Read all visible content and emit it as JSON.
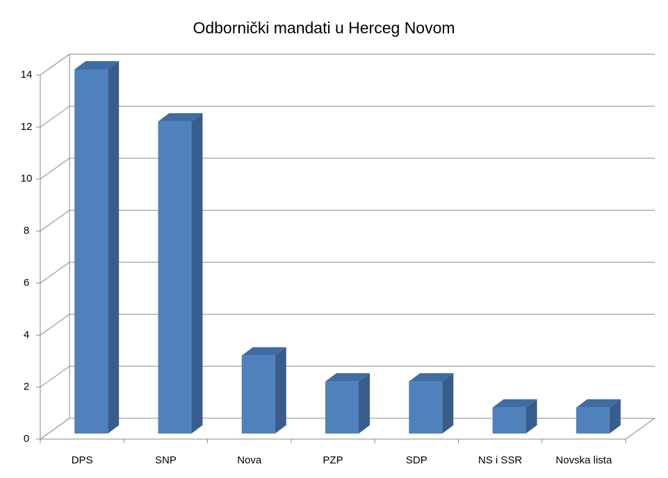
{
  "chart_data": {
    "type": "bar",
    "title": "Odbornički mandati u Herceg Novom",
    "categories": [
      "DPS",
      "SNP",
      "Nova",
      "PZP",
      "SDP",
      "NS i SSR",
      "Novska lista"
    ],
    "values": [
      14,
      12,
      3,
      2,
      2,
      1,
      1
    ],
    "color": "#4f81bd",
    "ylim": [
      0,
      14
    ],
    "yticks": [
      0,
      2,
      4,
      6,
      8,
      10,
      12,
      14
    ],
    "grid": true
  }
}
